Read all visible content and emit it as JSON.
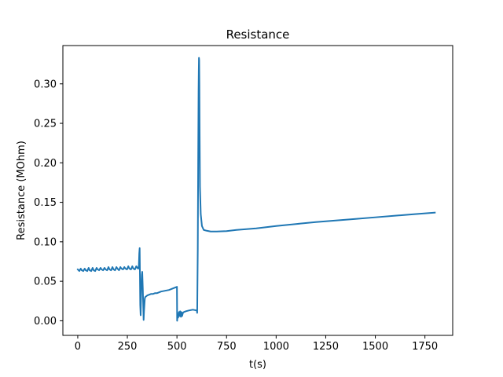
{
  "chart_data": {
    "type": "line",
    "title": "Resistance",
    "xlabel": "t(s)",
    "ylabel": "Resistance (MOhm)",
    "xlim": [
      -75,
      1890
    ],
    "ylim": [
      -0.0185,
      0.3485
    ],
    "x_ticks": [
      0,
      250,
      500,
      750,
      1000,
      1250,
      1500,
      1750
    ],
    "x_tick_labels": [
      "0",
      "250",
      "500",
      "750",
      "1000",
      "1250",
      "1500",
      "1750"
    ],
    "y_ticks": [
      0.0,
      0.05,
      0.1,
      0.15,
      0.2,
      0.25,
      0.3
    ],
    "y_tick_labels": [
      "0.00",
      "0.05",
      "0.10",
      "0.15",
      "0.20",
      "0.25",
      "0.30"
    ],
    "grid": false,
    "colors": {
      "line": "#1f77b4",
      "axes": "#000000",
      "background": "#ffffff"
    },
    "series": [
      {
        "x": [
          0,
          8,
          15,
          20,
          28,
          35,
          40,
          48,
          55,
          60,
          68,
          75,
          80,
          88,
          95,
          100,
          108,
          115,
          120,
          128,
          135,
          140,
          148,
          155,
          160,
          168,
          175,
          180,
          188,
          195,
          200,
          208,
          215,
          220,
          228,
          235,
          240,
          248,
          255,
          260,
          268,
          275,
          280,
          288,
          295,
          300,
          305,
          308,
          310,
          312,
          313,
          315,
          317,
          320,
          323,
          325,
          328,
          332,
          334,
          336,
          338,
          340,
          345,
          350,
          360,
          370,
          380,
          390,
          400,
          420,
          440,
          460,
          480,
          500,
          501,
          503,
          506,
          510,
          513,
          516,
          520,
          523,
          526,
          530,
          535,
          545,
          560,
          580,
          600,
          602,
          605,
          607,
          609,
          610,
          611,
          612,
          613,
          614,
          616,
          620,
          626,
          635,
          650,
          670,
          700,
          750,
          800,
          900,
          1000,
          1100,
          1200,
          1300,
          1400,
          1500,
          1600,
          1700,
          1800
        ],
        "y": [
          0.065,
          0.063,
          0.066,
          0.064,
          0.063,
          0.066,
          0.064,
          0.063,
          0.067,
          0.064,
          0.063,
          0.067,
          0.064,
          0.063,
          0.067,
          0.065,
          0.064,
          0.067,
          0.065,
          0.064,
          0.067,
          0.065,
          0.064,
          0.068,
          0.065,
          0.064,
          0.068,
          0.065,
          0.064,
          0.068,
          0.066,
          0.064,
          0.068,
          0.066,
          0.065,
          0.068,
          0.066,
          0.065,
          0.069,
          0.066,
          0.065,
          0.069,
          0.066,
          0.065,
          0.069,
          0.067,
          0.066,
          0.07,
          0.085,
          0.092,
          0.07,
          0.02,
          0.007,
          0.04,
          0.058,
          0.062,
          0.04,
          0.001,
          0.012,
          0.02,
          0.028,
          0.03,
          0.031,
          0.032,
          0.033,
          0.034,
          0.034,
          0.035,
          0.035,
          0.037,
          0.038,
          0.039,
          0.041,
          0.043,
          0.0,
          0.008,
          0.004,
          0.011,
          0.006,
          0.012,
          0.005,
          0.011,
          0.006,
          0.01,
          0.011,
          0.012,
          0.013,
          0.014,
          0.013,
          0.01,
          0.09,
          0.2,
          0.29,
          0.315,
          0.333,
          0.33,
          0.3,
          0.25,
          0.17,
          0.135,
          0.12,
          0.115,
          0.114,
          0.113,
          0.113,
          0.1135,
          0.115,
          0.117,
          0.12,
          0.1225,
          0.125,
          0.127,
          0.129,
          0.131,
          0.133,
          0.135,
          0.137
        ]
      }
    ]
  }
}
